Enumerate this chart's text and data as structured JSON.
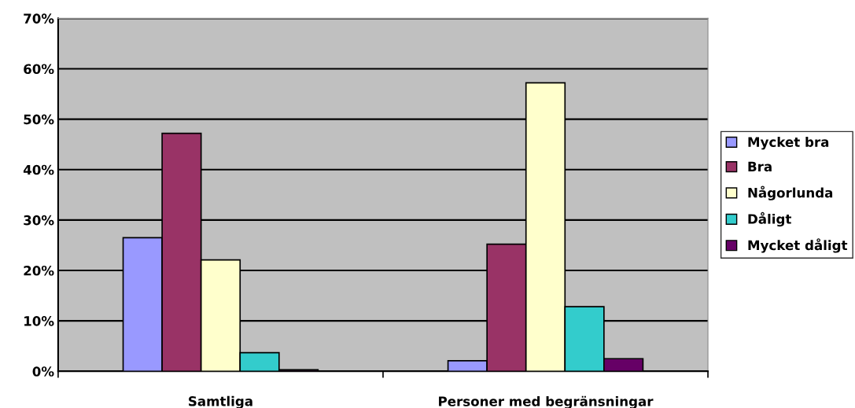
{
  "chart_data": {
    "type": "bar",
    "categories": [
      "Samtliga",
      "Personer med begränsningar"
    ],
    "series": [
      {
        "name": "Mycket bra",
        "color": "#9999ff",
        "values": [
          26.5,
          2.1
        ]
      },
      {
        "name": "Bra",
        "color": "#993366",
        "values": [
          47.2,
          25.2
        ]
      },
      {
        "name": "Någorlunda",
        "color": "#ffffcc",
        "values": [
          22.1,
          57.2
        ]
      },
      {
        "name": "Dåligt",
        "color": "#33cccc",
        "values": [
          3.7,
          12.8
        ]
      },
      {
        "name": "Mycket dåligt",
        "color": "#660066",
        "values": [
          0.3,
          2.5
        ]
      }
    ],
    "ylim": [
      0,
      70
    ],
    "yticks": [
      {
        "value": 0,
        "label": "0%"
      },
      {
        "value": 10,
        "label": "10%"
      },
      {
        "value": 20,
        "label": "20%"
      },
      {
        "value": 30,
        "label": "30%"
      },
      {
        "value": 40,
        "label": "40%"
      },
      {
        "value": 50,
        "label": "50%"
      },
      {
        "value": 60,
        "label": "60%"
      },
      {
        "value": 70,
        "label": "70%"
      }
    ],
    "grid": "y",
    "legend": "right"
  }
}
